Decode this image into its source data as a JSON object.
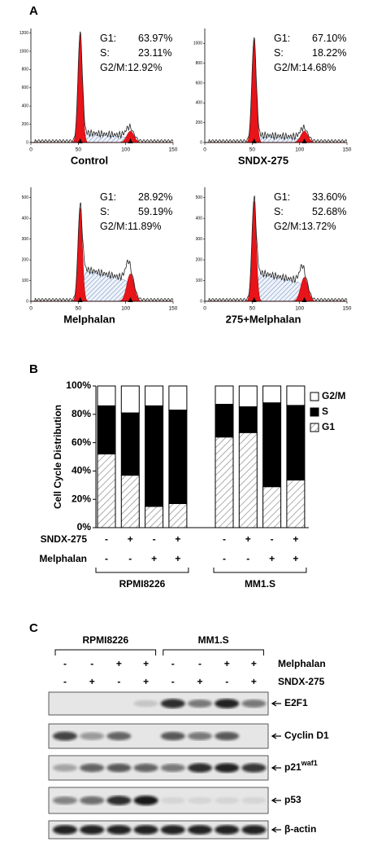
{
  "panel_a": {
    "label": "A",
    "xticks": [
      0,
      50,
      100,
      150
    ],
    "plots": [
      {
        "title": "Control",
        "ylim": [
          0,
          1250
        ],
        "yticks": [
          0,
          200,
          400,
          600,
          800,
          1000,
          1200
        ],
        "stats": [
          {
            "label": "G1:",
            "value": "63.97%"
          },
          {
            "label": "S:",
            "value": "23.11%"
          },
          {
            "label": "G2/M:",
            "value": "12.92%"
          }
        ]
      },
      {
        "title": "SNDX-275",
        "ylim": [
          0,
          1150
        ],
        "yticks": [
          0,
          200,
          400,
          600,
          800,
          1000
        ],
        "stats": [
          {
            "label": "G1:",
            "value": "67.10%"
          },
          {
            "label": "S:",
            "value": "18.22%"
          },
          {
            "label": "G2/M:",
            "value": "14.68%"
          }
        ]
      },
      {
        "title": "Melphalan",
        "ylim": [
          0,
          550
        ],
        "yticks": [
          0,
          100,
          200,
          300,
          400,
          500
        ],
        "stats": [
          {
            "label": "G1:",
            "value": "28.92%"
          },
          {
            "label": "S:",
            "value": "59.19%"
          },
          {
            "label": "G2/M:",
            "value": "11.89%"
          }
        ]
      },
      {
        "title": "275+Melphalan",
        "ylim": [
          0,
          550
        ],
        "yticks": [
          0,
          100,
          200,
          300,
          400,
          500
        ],
        "stats": [
          {
            "label": "G1:",
            "value": "33.60%"
          },
          {
            "label": "S:",
            "value": "52.68%"
          },
          {
            "label": "G2/M:",
            "value": "13.72%"
          }
        ]
      }
    ]
  },
  "chart_data": {
    "type": "bar",
    "stacked": true,
    "panel_label": "B",
    "ylabel": "Cell Cycle Distribution",
    "categories": [
      null,
      null,
      null,
      null,
      null,
      null,
      null,
      null
    ],
    "ylim": [
      0,
      100
    ],
    "yticks": [
      {
        "value": 0,
        "label": "0%"
      },
      {
        "value": 20,
        "label": "20%"
      },
      {
        "value": 40,
        "label": "40%"
      },
      {
        "value": 60,
        "label": "60%"
      },
      {
        "value": 80,
        "label": "80%"
      },
      {
        "value": 100,
        "label": "100%"
      }
    ],
    "legend": "right",
    "series": [
      {
        "name": "G1",
        "color": "#ffffff",
        "pattern": "hatch",
        "values": [
          52,
          37,
          15,
          17,
          63.97,
          67.1,
          28.92,
          33.6
        ]
      },
      {
        "name": "S",
        "color": "#000000",
        "values": [
          34,
          44,
          71,
          66,
          23.11,
          18.22,
          59.19,
          52.68
        ]
      },
      {
        "name": "G2/M",
        "color": "#ffffff",
        "values": [
          14,
          19,
          14,
          17,
          12.92,
          14.68,
          11.89,
          13.72
        ]
      }
    ],
    "treatment_rows": [
      {
        "name": "SNDX-275",
        "marks": [
          "-",
          "+",
          "-",
          "+",
          "-",
          "+",
          "-",
          "+"
        ]
      },
      {
        "name": "Melphalan",
        "marks": [
          "-",
          "-",
          "+",
          "+",
          "-",
          "-",
          "+",
          "+"
        ]
      }
    ],
    "groups": [
      "RPMI8226",
      "MM1.S"
    ]
  },
  "panel_c": {
    "label": "C",
    "groups": [
      "RPMI8226",
      "MM1.S"
    ],
    "treatment_rows": [
      {
        "name": "Melphalan",
        "marks": [
          "-",
          "-",
          "+",
          "+",
          "-",
          "-",
          "+",
          "+"
        ]
      },
      {
        "name": "SNDX-275",
        "marks": [
          "-",
          "+",
          "-",
          "+",
          "-",
          "+",
          "-",
          "+"
        ]
      }
    ],
    "blots": [
      {
        "label": "E2F1"
      },
      {
        "label": "Cyclin D1"
      },
      {
        "label": "p21",
        "superscript": "waf1"
      },
      {
        "label": "p53"
      },
      {
        "label": "β-actin"
      }
    ]
  }
}
